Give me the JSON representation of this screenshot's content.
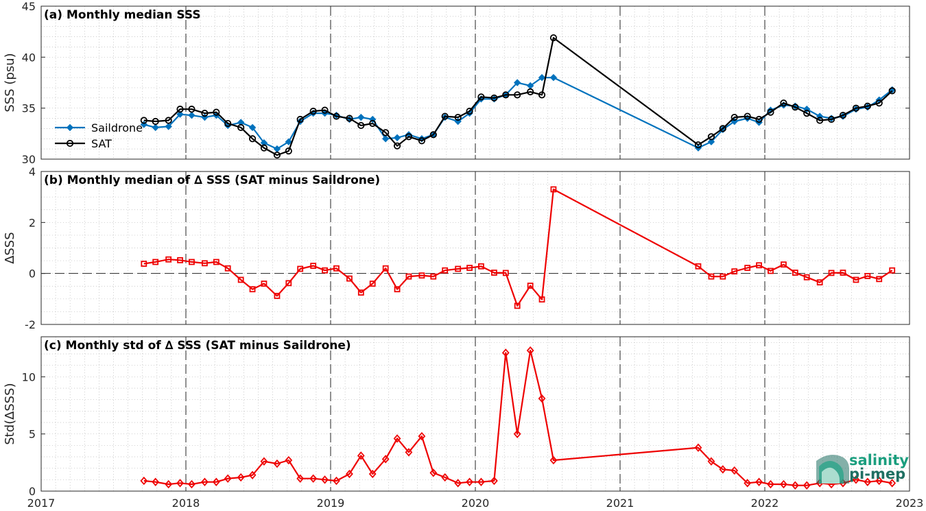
{
  "colors": {
    "saildrone": "#0072BD",
    "sat": "#000000",
    "delta": "#EE0000",
    "grid": "#b8b8b8",
    "logo_green": "#1a9e7e",
    "logo_dark": "#1f6f62"
  },
  "logo": {
    "line1": "salinity",
    "line2": "pi-mep"
  },
  "chart_data": [
    {
      "id": "a",
      "type": "line",
      "title": "(a) Monthly median SSS",
      "ylabel": "SSS (psu)",
      "ylim": [
        30,
        45
      ],
      "yticks": [
        30,
        35,
        40,
        45
      ],
      "xlim": [
        2017,
        2023
      ],
      "xticks": [
        2017,
        2018,
        2019,
        2020,
        2021,
        2022,
        2023
      ],
      "legend": {
        "position": "middle-left"
      },
      "series": [
        {
          "name": "Saildrone",
          "marker": "filled-diamond",
          "x": [
            2017.71,
            2017.79,
            2017.88,
            2017.96,
            2018.04,
            2018.13,
            2018.21,
            2018.29,
            2018.38,
            2018.46,
            2018.54,
            2018.63,
            2018.71,
            2018.79,
            2018.88,
            2018.96,
            2019.04,
            2019.13,
            2019.21,
            2019.29,
            2019.38,
            2019.46,
            2019.54,
            2019.63,
            2019.71,
            2019.79,
            2019.88,
            2019.96,
            2020.04,
            2020.13,
            2020.21,
            2020.29,
            2020.38,
            2020.46,
            2020.54,
            2021.54,
            2021.63,
            2021.71,
            2021.79,
            2021.88,
            2021.96,
            2022.04,
            2022.13,
            2022.21,
            2022.29,
            2022.38,
            2022.46,
            2022.54,
            2022.63,
            2022.71,
            2022.79,
            2022.88
          ],
          "y": [
            33.4,
            33.1,
            33.2,
            34.4,
            34.3,
            34.1,
            34.3,
            33.3,
            33.6,
            33.1,
            31.6,
            31.0,
            31.7,
            33.7,
            34.5,
            34.5,
            34.3,
            33.9,
            34.1,
            33.9,
            32.0,
            32.1,
            32.4,
            32.0,
            32.4,
            34.1,
            33.7,
            34.5,
            35.9,
            35.9,
            36.3,
            37.5,
            37.2,
            38.0,
            38.0,
            31.1,
            31.7,
            32.9,
            33.7,
            34.0,
            33.6,
            34.8,
            35.3,
            35.2,
            34.9,
            34.2,
            34.0,
            34.2,
            34.9,
            35.1,
            35.8,
            36.8
          ]
        },
        {
          "name": "SAT",
          "marker": "open-circle",
          "x": [
            2017.71,
            2017.79,
            2017.88,
            2017.96,
            2018.04,
            2018.13,
            2018.21,
            2018.29,
            2018.38,
            2018.46,
            2018.54,
            2018.63,
            2018.71,
            2018.79,
            2018.88,
            2018.96,
            2019.04,
            2019.13,
            2019.21,
            2019.29,
            2019.38,
            2019.46,
            2019.54,
            2019.63,
            2019.71,
            2019.79,
            2019.88,
            2019.96,
            2020.04,
            2020.13,
            2020.21,
            2020.29,
            2020.38,
            2020.46,
            2020.54,
            2021.54,
            2021.63,
            2021.71,
            2021.79,
            2021.88,
            2021.96,
            2022.04,
            2022.13,
            2022.21,
            2022.29,
            2022.38,
            2022.46,
            2022.54,
            2022.63,
            2022.71,
            2022.79,
            2022.88
          ],
          "y": [
            33.8,
            33.7,
            33.8,
            34.9,
            34.9,
            34.5,
            34.6,
            33.5,
            33.1,
            32.0,
            31.1,
            30.4,
            30.8,
            33.9,
            34.7,
            34.8,
            34.2,
            34.0,
            33.3,
            33.5,
            32.6,
            31.3,
            32.2,
            31.8,
            32.4,
            34.2,
            34.1,
            34.7,
            36.1,
            36.0,
            36.3,
            36.3,
            36.6,
            36.3,
            41.9,
            31.4,
            32.2,
            33.0,
            34.1,
            34.2,
            33.9,
            34.6,
            35.5,
            35.1,
            34.5,
            33.8,
            33.9,
            34.3,
            35.0,
            35.2,
            35.5,
            36.7
          ]
        }
      ]
    },
    {
      "id": "b",
      "type": "line",
      "title": "(b) Monthly median of ∆ SSS (SAT minus Saildrone)",
      "ylabel": "∆SSS",
      "ylim": [
        -2,
        4
      ],
      "yticks": [
        -2,
        0,
        2,
        4
      ],
      "xlim": [
        2017,
        2023
      ],
      "xticks": [
        2017,
        2018,
        2019,
        2020,
        2021,
        2022,
        2023
      ],
      "zero_line": true,
      "series": [
        {
          "marker": "open-square",
          "x": [
            2017.71,
            2017.79,
            2017.88,
            2017.96,
            2018.04,
            2018.13,
            2018.21,
            2018.29,
            2018.38,
            2018.46,
            2018.54,
            2018.63,
            2018.71,
            2018.79,
            2018.88,
            2018.96,
            2019.04,
            2019.13,
            2019.21,
            2019.29,
            2019.38,
            2019.46,
            2019.54,
            2019.63,
            2019.71,
            2019.79,
            2019.88,
            2019.96,
            2020.04,
            2020.13,
            2020.21,
            2020.29,
            2020.38,
            2020.46,
            2020.54,
            2021.54,
            2021.63,
            2021.71,
            2021.79,
            2021.88,
            2021.96,
            2022.04,
            2022.13,
            2022.21,
            2022.29,
            2022.38,
            2022.46,
            2022.54,
            2022.63,
            2022.71,
            2022.79,
            2022.88
          ],
          "y": [
            0.38,
            0.45,
            0.55,
            0.52,
            0.45,
            0.4,
            0.45,
            0.2,
            -0.25,
            -0.62,
            -0.4,
            -0.88,
            -0.38,
            0.18,
            0.3,
            0.12,
            0.2,
            -0.2,
            -0.75,
            -0.4,
            0.2,
            -0.62,
            -0.12,
            -0.08,
            -0.12,
            0.12,
            0.18,
            0.22,
            0.28,
            0.03,
            0.02,
            -1.27,
            -0.48,
            -1.02,
            3.3,
            0.28,
            -0.12,
            -0.12,
            0.08,
            0.22,
            0.32,
            0.1,
            0.35,
            0.03,
            -0.15,
            -0.35,
            0.02,
            0.03,
            -0.25,
            -0.1,
            -0.22,
            0.12
          ]
        }
      ]
    },
    {
      "id": "c",
      "type": "line",
      "title": "(c) Monthly std of ∆ SSS (SAT minus Saildrone)",
      "ylabel": "Std(∆SSS)",
      "ylim": [
        0,
        13.5
      ],
      "yticks": [
        0,
        5,
        10
      ],
      "xlim": [
        2017,
        2023
      ],
      "xticks": [
        2017,
        2018,
        2019,
        2020,
        2021,
        2022,
        2023
      ],
      "xticklabels": [
        "2017",
        "2018",
        "2019",
        "2020",
        "2021",
        "2022",
        "2023"
      ],
      "series": [
        {
          "marker": "open-diamond",
          "x": [
            2017.71,
            2017.79,
            2017.88,
            2017.96,
            2018.04,
            2018.13,
            2018.21,
            2018.29,
            2018.38,
            2018.46,
            2018.54,
            2018.63,
            2018.71,
            2018.79,
            2018.88,
            2018.96,
            2019.04,
            2019.13,
            2019.21,
            2019.29,
            2019.38,
            2019.46,
            2019.54,
            2019.63,
            2019.71,
            2019.79,
            2019.88,
            2019.96,
            2020.04,
            2020.13,
            2020.21,
            2020.29,
            2020.38,
            2020.46,
            2020.54,
            2021.54,
            2021.63,
            2021.71,
            2021.79,
            2021.88,
            2021.96,
            2022.04,
            2022.13,
            2022.21,
            2022.29,
            2022.38,
            2022.46,
            2022.54,
            2022.63,
            2022.71,
            2022.79,
            2022.88
          ],
          "y": [
            0.9,
            0.8,
            0.6,
            0.7,
            0.6,
            0.8,
            0.8,
            1.1,
            1.2,
            1.4,
            2.6,
            2.4,
            2.7,
            1.1,
            1.1,
            1.0,
            0.9,
            1.5,
            3.1,
            1.5,
            2.8,
            4.6,
            3.4,
            4.8,
            1.6,
            1.2,
            0.7,
            0.8,
            0.8,
            0.9,
            12.1,
            5.0,
            12.3,
            8.1,
            2.7,
            3.8,
            2.6,
            1.9,
            1.8,
            0.7,
            0.8,
            0.6,
            0.6,
            0.5,
            0.5,
            0.7,
            0.6,
            0.7,
            1.0,
            0.8,
            0.9,
            0.7
          ]
        }
      ]
    }
  ]
}
